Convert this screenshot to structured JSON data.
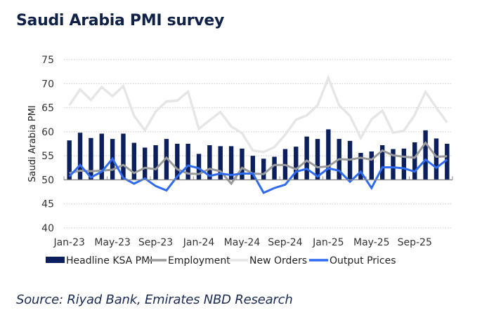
{
  "title": "Saudi Arabia PMI survey",
  "source": "Source: Riyad Bank, Emirates NBD Research",
  "chart_data": {
    "type": "bar",
    "title": "Saudi Arabia PMI survey",
    "xlabel": "",
    "ylabel": "Saudi Arabia PMI",
    "ylim": [
      40,
      75
    ],
    "yticks": [
      40,
      45,
      50,
      55,
      60,
      65,
      70,
      75
    ],
    "baseline": 50,
    "grid": true,
    "legend_position": "bottom",
    "categories": [
      "Jan-23",
      "Feb-23",
      "Mar-23",
      "Apr-23",
      "May-23",
      "Jun-23",
      "Jul-23",
      "Aug-23",
      "Sep-23",
      "Oct-23",
      "Nov-23",
      "Dec-23",
      "Jan-24",
      "Feb-24",
      "Mar-24",
      "Apr-24",
      "May-24",
      "Jun-24",
      "Jul-24",
      "Aug-24",
      "Sep-24",
      "Oct-24",
      "Nov-24",
      "Dec-24",
      "Jan-25",
      "Feb-25",
      "Mar-25",
      "Apr-25",
      "May-25",
      "Jun-25",
      "Jul-25",
      "Aug-25",
      "Sep-25",
      "Oct-25",
      "Nov-25",
      "Dec-25"
    ],
    "xtick_labels": [
      "Jan-23",
      "May-23",
      "Sep-23",
      "Jan-24",
      "May-24",
      "Sep-24",
      "Jan-25",
      "May-25",
      "Sep-25"
    ],
    "series": [
      {
        "name": "Headline KSA PMI",
        "kind": "bar",
        "color": "#0b1f5c",
        "values": [
          58.2,
          59.8,
          58.7,
          59.6,
          58.5,
          59.6,
          57.7,
          56.7,
          57.2,
          58.5,
          57.5,
          57.5,
          55.4,
          57.2,
          57.0,
          57.0,
          56.5,
          55.0,
          54.4,
          54.8,
          56.4,
          56.9,
          59.0,
          58.5,
          60.5,
          58.5,
          58.1,
          55.6,
          55.9,
          57.2,
          56.4,
          56.5,
          57.8,
          60.3,
          58.6,
          57.5
        ]
      },
      {
        "name": "Employment",
        "kind": "line",
        "color": "#9a9a9a",
        "values": [
          51.4,
          51.9,
          51.8,
          51.9,
          52.1,
          53.1,
          51.4,
          52.5,
          52.2,
          54.6,
          52.2,
          51.3,
          51.2,
          52.3,
          51.8,
          49.2,
          52.5,
          51.3,
          51.2,
          53.1,
          53.1,
          52.2,
          54.0,
          52.6,
          52.8,
          54.3,
          54.2,
          54.6,
          54.2,
          56.1,
          55.1,
          54.8,
          54.6,
          57.7,
          54.8,
          54.9
        ]
      },
      {
        "name": "New Orders",
        "kind": "line",
        "color": "#e6e6e6",
        "values": [
          65.5,
          68.8,
          66.6,
          69.3,
          67.4,
          69.5,
          63.3,
          60.3,
          64.2,
          66.3,
          66.5,
          68.3,
          60.6,
          62.4,
          64.1,
          61.1,
          59.7,
          56.1,
          55.8,
          56.8,
          59.4,
          62.5,
          63.4,
          65.5,
          71.2,
          65.5,
          63.3,
          58.7,
          62.6,
          64.4,
          59.8,
          60.2,
          63.5,
          68.3,
          65.0,
          61.9
        ]
      },
      {
        "name": "Output Prices",
        "kind": "line",
        "color": "#2f6bf0",
        "values": [
          50.7,
          53.1,
          50.5,
          51.7,
          54.4,
          50.4,
          49.2,
          50.3,
          48.7,
          47.8,
          50.7,
          53.0,
          52.4,
          50.8,
          51.3,
          51.0,
          51.3,
          51.3,
          47.3,
          48.3,
          49.0,
          51.7,
          52.3,
          50.7,
          52.4,
          51.9,
          49.6,
          51.7,
          48.3,
          52.6,
          52.6,
          52.4,
          51.7,
          54.2,
          52.5,
          54.2
        ]
      }
    ]
  }
}
